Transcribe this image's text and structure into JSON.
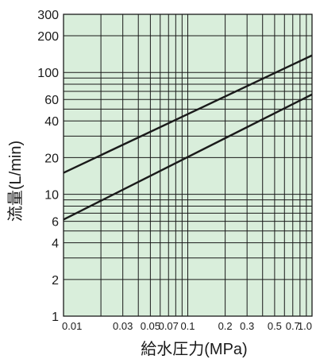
{
  "chart_data": {
    "type": "line",
    "xlabel": "給水圧力(MPa)",
    "ylabel": "流量(L/min)",
    "x_scale": "log",
    "y_scale": "log",
    "xlim": [
      0.01,
      1.0
    ],
    "ylim": [
      1,
      300
    ],
    "grid": true,
    "colors": {
      "plot_background": "#d9eedb",
      "grid": "#1a1a1a",
      "series": "#1a1a1a"
    },
    "x_ticks": [
      {
        "value": 0.01,
        "label": "0.01"
      },
      {
        "value": 0.03,
        "label": "0.03"
      },
      {
        "value": 0.05,
        "label": "0.05"
      },
      {
        "value": 0.07,
        "label": "0.07"
      },
      {
        "value": 0.1,
        "label": "0.1"
      },
      {
        "value": 0.2,
        "label": "0.2"
      },
      {
        "value": 0.3,
        "label": "0.3"
      },
      {
        "value": 0.5,
        "label": "0.5"
      },
      {
        "value": 0.7,
        "label": "0.7"
      },
      {
        "value": 1.0,
        "label": "1.0"
      }
    ],
    "y_ticks": [
      {
        "value": 1,
        "label": "1"
      },
      {
        "value": 2,
        "label": "2"
      },
      {
        "value": 4,
        "label": "4"
      },
      {
        "value": 6,
        "label": "6"
      },
      {
        "value": 10,
        "label": "10"
      },
      {
        "value": 20,
        "label": "20"
      },
      {
        "value": 40,
        "label": "40"
      },
      {
        "value": 60,
        "label": "60"
      },
      {
        "value": 100,
        "label": "100"
      },
      {
        "value": 200,
        "label": "200"
      },
      {
        "value": 300,
        "label": "300"
      }
    ],
    "x_gridlines": [
      0.01,
      0.02,
      0.03,
      0.04,
      0.05,
      0.06,
      0.07,
      0.08,
      0.09,
      0.1,
      0.2,
      0.3,
      0.4,
      0.5,
      0.6,
      0.7,
      0.8,
      0.9,
      1.0
    ],
    "y_gridlines": [
      1,
      2,
      3,
      4,
      5,
      6,
      7,
      8,
      9,
      10,
      20,
      30,
      40,
      50,
      60,
      70,
      80,
      90,
      100,
      200,
      300
    ],
    "series": [
      {
        "x": [
          0.01,
          1.0
        ],
        "y": [
          15.0,
          138.0
        ]
      },
      {
        "x": [
          0.01,
          1.0
        ],
        "y": [
          6.2,
          66.0
        ]
      }
    ]
  }
}
